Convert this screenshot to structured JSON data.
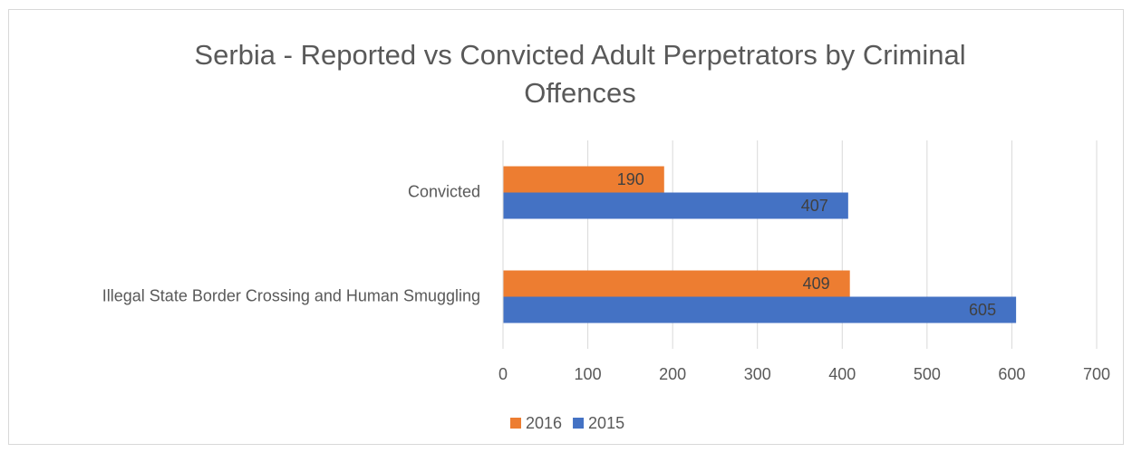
{
  "chart_data": {
    "type": "barh",
    "title": "Serbia - Reported vs Convicted Adult Perpetrators by Criminal Offences",
    "categories": [
      "Convicted",
      "Illegal State Border Crossing and Human Smuggling"
    ],
    "series": [
      {
        "name": "2016",
        "color": "#ed7d31",
        "values": [
          190,
          409
        ]
      },
      {
        "name": "2015",
        "color": "#4472c4",
        "values": [
          407,
          605
        ]
      }
    ],
    "xlim": [
      0,
      700
    ],
    "xticks": [
      0,
      100,
      200,
      300,
      400,
      500,
      600,
      700
    ],
    "grid": true,
    "legend": "bottom"
  }
}
